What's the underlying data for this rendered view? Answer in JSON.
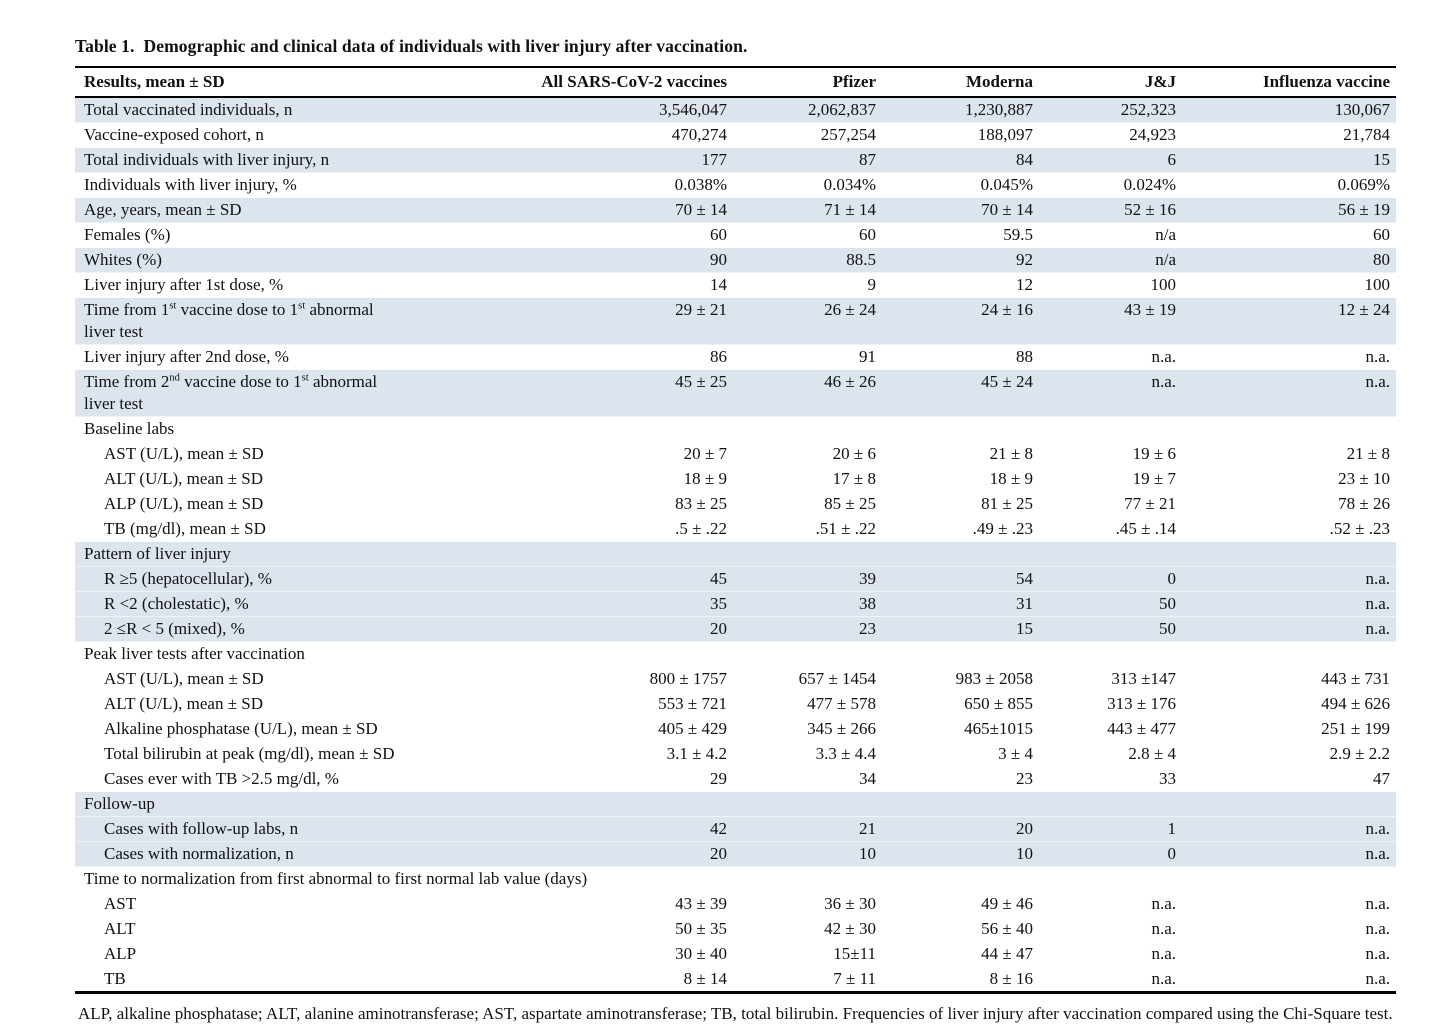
{
  "title": {
    "label": "Table 1.",
    "text": "Demographic and clinical data of individuals with liver injury after vaccination."
  },
  "colors": {
    "row_shade": "#dce4ee",
    "rule": "#000000",
    "text": "#111111"
  },
  "table": {
    "columns": [
      "Results, mean ± SD",
      "All SARS-CoV-2 vaccines",
      "Pfizer",
      "Moderna",
      "J&J",
      "Influenza vaccine"
    ],
    "rows": [
      {
        "label": "Total vaccinated individuals, n",
        "indent": 0,
        "section": false,
        "shaded": true,
        "values": [
          "3,546,047",
          "2,062,837",
          "1,230,887",
          "252,323",
          "130,067"
        ]
      },
      {
        "label": "Vaccine-exposed cohort, n",
        "indent": 0,
        "section": false,
        "shaded": false,
        "values": [
          "470,274",
          "257,254",
          "188,097",
          "24,923",
          "21,784"
        ]
      },
      {
        "label": "Total individuals with liver injury, n",
        "indent": 0,
        "section": false,
        "shaded": true,
        "values": [
          "177",
          "87",
          "84",
          "6",
          "15"
        ]
      },
      {
        "label": "Individuals with liver injury, %",
        "indent": 0,
        "section": false,
        "shaded": false,
        "values": [
          "0.038%",
          "0.034%",
          "0.045%",
          "0.024%",
          "0.069%"
        ]
      },
      {
        "label": "Age, years, mean ± SD",
        "indent": 0,
        "section": false,
        "shaded": true,
        "values": [
          "70 ± 14",
          "71 ± 14",
          "70 ± 14",
          "52 ± 16",
          "56 ± 19"
        ]
      },
      {
        "label": "Females (%)",
        "indent": 0,
        "section": false,
        "shaded": false,
        "values": [
          "60",
          "60",
          "59.5",
          "n/a",
          "60"
        ]
      },
      {
        "label": "Whites (%)",
        "indent": 0,
        "section": false,
        "shaded": true,
        "values": [
          "90",
          "88.5",
          "92",
          "n/a",
          "80"
        ]
      },
      {
        "label": "Liver injury after 1st dose, %",
        "indent": 0,
        "section": false,
        "shaded": false,
        "values": [
          "14",
          "9",
          "12",
          "100",
          "100"
        ]
      },
      {
        "label": "Time from 1^{st} vaccine dose to 1^{st} abnormal\nliver test",
        "indent": 0,
        "section": false,
        "shaded": true,
        "values": [
          "29 ± 21",
          "26 ± 24",
          "24 ± 16",
          "43 ± 19",
          "12 ± 24"
        ]
      },
      {
        "label": "Liver injury after 2nd dose, %",
        "indent": 0,
        "section": false,
        "shaded": false,
        "values": [
          "86",
          "91",
          "88",
          "n.a.",
          "n.a."
        ]
      },
      {
        "label": "Time from 2^{nd} vaccine dose to 1^{st} abnormal\nliver test",
        "indent": 0,
        "section": false,
        "shaded": true,
        "values": [
          "45 ± 25",
          "46 ± 26",
          "45 ± 24",
          "n.a.",
          "n.a."
        ]
      },
      {
        "label": "Baseline labs",
        "indent": 0,
        "section": true,
        "shaded": false,
        "values": []
      },
      {
        "label": "AST (U/L), mean ± SD",
        "indent": 1,
        "section": false,
        "shaded": false,
        "values": [
          "20 ± 7",
          "20 ± 6",
          "21 ± 8",
          "19 ± 6",
          "21 ± 8"
        ]
      },
      {
        "label": "ALT (U/L), mean ± SD",
        "indent": 1,
        "section": false,
        "shaded": false,
        "values": [
          "18 ± 9",
          "17 ± 8",
          "18 ± 9",
          "19 ± 7",
          "23 ± 10"
        ]
      },
      {
        "label": "ALP (U/L), mean ± SD",
        "indent": 1,
        "section": false,
        "shaded": false,
        "values": [
          "83 ± 25",
          "85 ± 25",
          "81 ± 25",
          "77 ± 21",
          "78 ± 26"
        ]
      },
      {
        "label": "TB (mg/dl), mean ± SD",
        "indent": 1,
        "section": false,
        "shaded": false,
        "values": [
          ".5 ± .22",
          ".51 ± .22",
          ".49 ± .23",
          ".45 ± .14",
          ".52 ± .23"
        ]
      },
      {
        "label": "Pattern of liver injury",
        "indent": 0,
        "section": true,
        "shaded": true,
        "values": []
      },
      {
        "label": "R ≥5 (hepatocellular), %",
        "indent": 1,
        "section": false,
        "shaded": true,
        "values": [
          "45",
          "39",
          "54",
          "0",
          "n.a."
        ]
      },
      {
        "label": "R <2 (cholestatic), %",
        "indent": 1,
        "section": false,
        "shaded": true,
        "values": [
          "35",
          "38",
          "31",
          "50",
          "n.a."
        ]
      },
      {
        "label": "2 ≤R < 5 (mixed), %",
        "indent": 1,
        "section": false,
        "shaded": true,
        "values": [
          "20",
          "23",
          "15",
          "50",
          "n.a."
        ]
      },
      {
        "label": "Peak liver tests after vaccination",
        "indent": 0,
        "section": true,
        "shaded": false,
        "values": []
      },
      {
        "label": "AST (U/L), mean ± SD",
        "indent": 1,
        "section": false,
        "shaded": false,
        "values": [
          "800 ± 1757",
          "657 ± 1454",
          "983 ± 2058",
          "313 ±147",
          "443 ± 731"
        ]
      },
      {
        "label": "ALT (U/L), mean ± SD",
        "indent": 1,
        "section": false,
        "shaded": false,
        "values": [
          "553 ± 721",
          "477 ± 578",
          "650 ± 855",
          "313 ± 176",
          "494 ± 626"
        ]
      },
      {
        "label": "Alkaline phosphatase (U/L), mean ± SD",
        "indent": 1,
        "section": false,
        "shaded": false,
        "values": [
          "405 ± 429",
          "345 ± 266",
          "465±1015",
          "443 ± 477",
          "251 ± 199"
        ]
      },
      {
        "label": "Total bilirubin at peak (mg/dl), mean ± SD",
        "indent": 1,
        "section": false,
        "shaded": false,
        "values": [
          "3.1 ± 4.2",
          "3.3 ± 4.4",
          "3 ± 4",
          "2.8 ± 4",
          "2.9 ± 2.2"
        ]
      },
      {
        "label": "Cases ever with TB >2.5 mg/dl, %",
        "indent": 1,
        "section": false,
        "shaded": false,
        "values": [
          "29",
          "34",
          "23",
          "33",
          "47"
        ]
      },
      {
        "label": "Follow-up",
        "indent": 0,
        "section": true,
        "shaded": true,
        "values": []
      },
      {
        "label": "Cases with follow-up labs, n",
        "indent": 1,
        "section": false,
        "shaded": true,
        "values": [
          "42",
          "21",
          "20",
          "1",
          "n.a."
        ]
      },
      {
        "label": "Cases with normalization, n",
        "indent": 1,
        "section": false,
        "shaded": true,
        "values": [
          "20",
          "10",
          "10",
          "0",
          "n.a."
        ]
      },
      {
        "label": "Time to normalization from first abnormal to first normal lab value (days)",
        "indent": 0,
        "section": true,
        "shaded": false,
        "values": []
      },
      {
        "label": "AST",
        "indent": 1,
        "section": false,
        "shaded": false,
        "values": [
          "43 ± 39",
          "36 ± 30",
          "49 ± 46",
          "n.a.",
          "n.a."
        ]
      },
      {
        "label": "ALT",
        "indent": 1,
        "section": false,
        "shaded": false,
        "values": [
          "50 ± 35",
          "42 ± 30",
          "56 ± 40",
          "n.a.",
          "n.a."
        ]
      },
      {
        "label": "ALP",
        "indent": 1,
        "section": false,
        "shaded": false,
        "values": [
          "30 ± 40",
          "15±11",
          "44 ± 47",
          "n.a.",
          "n.a."
        ]
      },
      {
        "label": "TB",
        "indent": 1,
        "section": false,
        "shaded": false,
        "values": [
          "8 ± 14",
          "7 ± 11",
          "8 ± 16",
          "n.a.",
          "n.a."
        ]
      }
    ]
  },
  "footnote": "ALP, alkaline phosphatase; ALT, alanine aminotransferase; AST, aspartate aminotransferase; TB, total bilirubin. Frequencies of liver injury after vaccination compared using the Chi-Square test."
}
